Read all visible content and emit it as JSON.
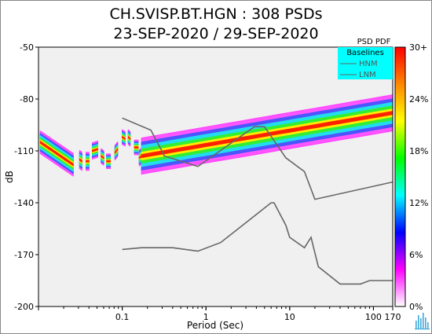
{
  "chart_data": {
    "type": "heatmap",
    "title": "CH.SVISP.BT.HGN : 308 PSDs",
    "subtitle": "23-SEP-2020 / 29-SEP-2020",
    "xlabel": "Period (Sec)",
    "ylabel": "dB",
    "x_scale": "log",
    "xlim": [
      0.01,
      170
    ],
    "ylim": [
      -200,
      -50
    ],
    "x_ticks": [
      {
        "value": 0.1,
        "label": "0.1"
      },
      {
        "value": 1,
        "label": "1"
      },
      {
        "value": 10,
        "label": "10"
      },
      {
        "value": 100,
        "label": "100"
      },
      {
        "value": 170,
        "label": "170"
      }
    ],
    "y_ticks": [
      {
        "value": -50,
        "label": "-50"
      },
      {
        "value": -80,
        "label": "-80"
      },
      {
        "value": -110,
        "label": "-110"
      },
      {
        "value": -140,
        "label": "-140"
      },
      {
        "value": -170,
        "label": "-170"
      },
      {
        "value": -200,
        "label": "-200"
      }
    ],
    "grid": false,
    "background_color": "#f0f0f0",
    "legend": {
      "title": "PSD PDF",
      "box_title": "Baselines",
      "entries": [
        "HNM",
        "LNM"
      ],
      "box_color": "#00ffff",
      "placement": "top-right"
    },
    "colorbar": {
      "labels": [
        "30+",
        "24%",
        "18%",
        "12%",
        "6%",
        "0%"
      ],
      "stops": [
        "#ff0000",
        "#ff8800",
        "#ffff00",
        "#00ff00",
        "#00ffff",
        "#0000ff",
        "#ff00ff",
        "#ffffff"
      ]
    },
    "baselines": [
      {
        "name": "HNM",
        "color": "#666666",
        "points": [
          [
            0.1,
            -91
          ],
          [
            0.22,
            -98
          ],
          [
            0.32,
            -113
          ],
          [
            0.8,
            -119
          ],
          [
            3.8,
            -96
          ],
          [
            5,
            -96
          ],
          [
            9,
            -114
          ],
          [
            15,
            -122
          ],
          [
            20,
            -138
          ],
          [
            170,
            -128
          ]
        ]
      },
      {
        "name": "LNM",
        "color": "#666666",
        "points": [
          [
            0.1,
            -167
          ],
          [
            0.17,
            -166
          ],
          [
            0.4,
            -166
          ],
          [
            0.8,
            -168
          ],
          [
            1.5,
            -163
          ],
          [
            3.5,
            -149
          ],
          [
            6,
            -140
          ],
          [
            6.5,
            -140
          ],
          [
            9,
            -153
          ],
          [
            10,
            -160
          ],
          [
            15,
            -166
          ],
          [
            18,
            -160
          ],
          [
            22,
            -177
          ],
          [
            40,
            -187
          ],
          [
            70,
            -187
          ],
          [
            90,
            -185
          ],
          [
            170,
            -185
          ]
        ]
      }
    ],
    "pdf_segments": [
      {
        "x": [
          0.0105,
          0.026
        ],
        "center": [
          -105,
          -118
        ],
        "width": 2.5
      },
      {
        "x": [
          0.031,
          0.033
        ],
        "center": [
          -115,
          -116
        ],
        "width": 2
      },
      {
        "x": [
          0.037,
          0.04
        ],
        "center": [
          -116,
          -116
        ],
        "width": 2
      },
      {
        "x": [
          0.044,
          0.051
        ],
        "center": [
          -110,
          -109
        ],
        "width": 1.8
      },
      {
        "x": [
          0.056,
          0.06
        ],
        "center": [
          -113,
          -114
        ],
        "width": 1.6
      },
      {
        "x": [
          0.065,
          0.072
        ],
        "center": [
          -116,
          -116
        ],
        "width": 1.6
      },
      {
        "x": [
          0.082,
          0.088
        ],
        "center": [
          -111,
          -109
        ],
        "width": 1.6
      },
      {
        "x": [
          0.1,
          0.108
        ],
        "center": [
          -102,
          -103
        ],
        "width": 1.6
      },
      {
        "x": [
          0.118,
          0.124
        ],
        "center": [
          -102,
          -103
        ],
        "width": 1.6
      },
      {
        "x": [
          0.14,
          0.155
        ],
        "center": [
          -108,
          -108
        ],
        "width": 1.6
      },
      {
        "x": [
          0.16,
          0.17
        ],
        "center": [
          -114,
          -113
        ],
        "width": 1.8
      },
      {
        "x": [
          0.17,
          170
        ],
        "center": [
          -113,
          -88
        ],
        "width": 4
      }
    ]
  }
}
